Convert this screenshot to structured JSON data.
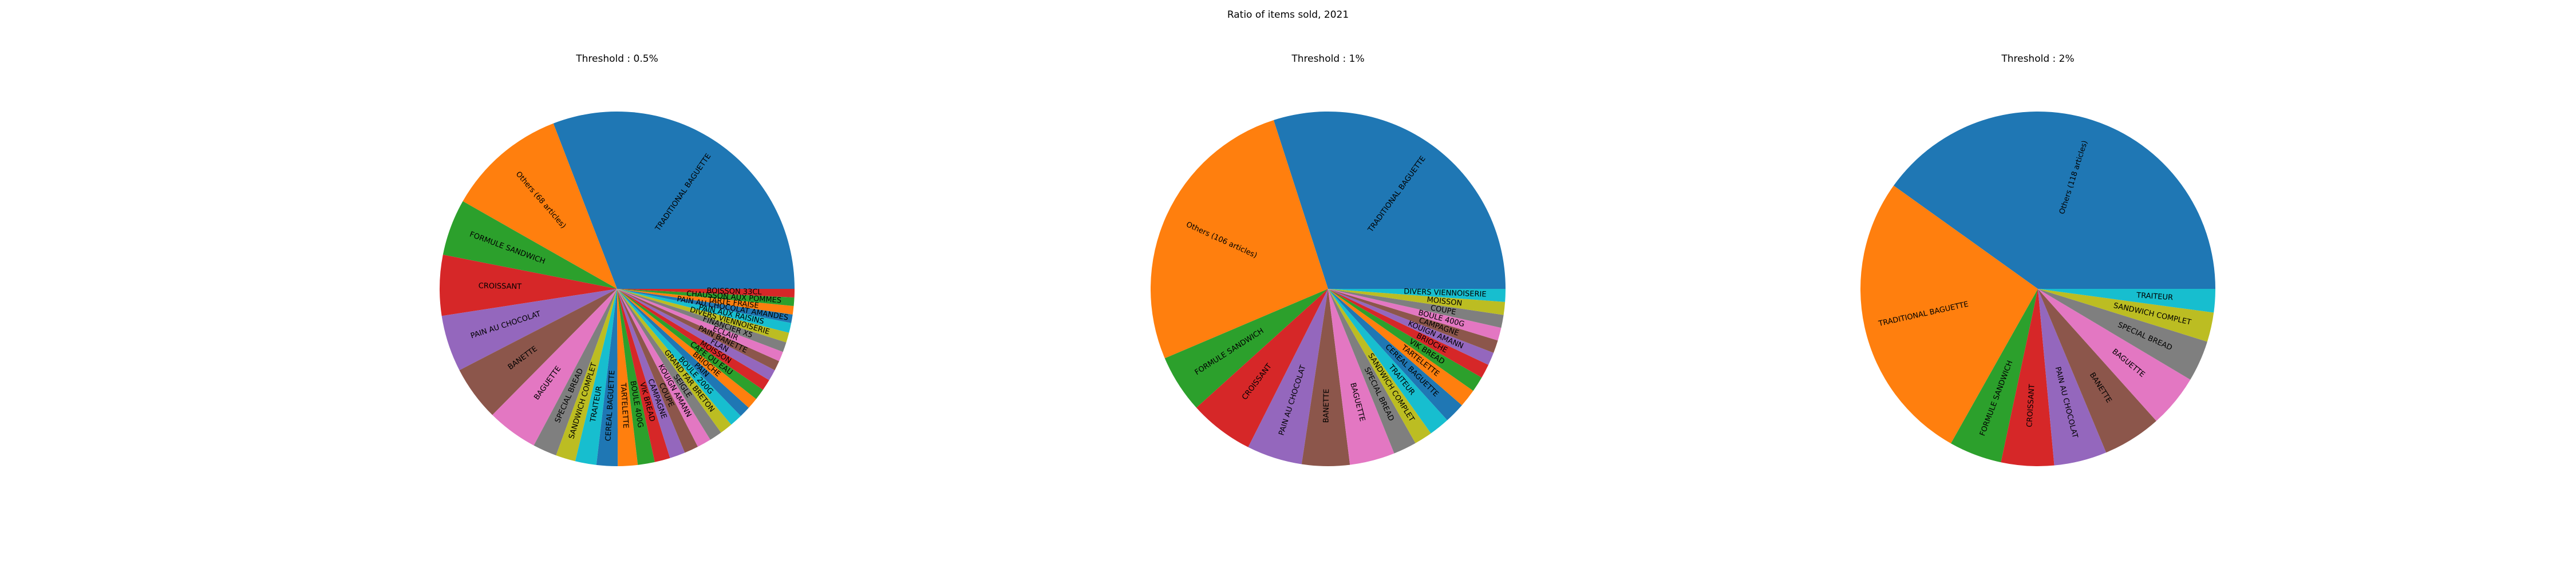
{
  "figure": {
    "title": "Ratio of items sold, 2021"
  },
  "palette": [
    "#1f77b4",
    "#ff7f0e",
    "#2ca02c",
    "#d62728",
    "#9467bd",
    "#8c564b",
    "#e377c2",
    "#7f7f7f",
    "#bcbd22",
    "#17becf"
  ],
  "chart_data": [
    {
      "type": "pie",
      "title": "Threshold : 0.5%",
      "start_angle_deg": 0,
      "direction": "counterclockwise",
      "labels": [
        "TRADITIONAL BAGUETTE",
        "Others (68 articles)",
        "FORMULE SANDWICH",
        "CROISSANT",
        "PAIN AU CHOCOLAT",
        "BANETTE",
        "BAGUETTE",
        "SPECIAL BREAD",
        "SANDWICH COMPLET",
        "TRAITEUR",
        "CEREAL BAGUETTE",
        "TARTELETTE",
        "BOULE 400G",
        "VIK BREAD",
        "CAMPAGNE",
        "COUPE",
        "KOUIGN AMANN",
        "SEIGLE",
        "GRAND FAR BRETON",
        "BOULE 200G",
        "PAIN",
        "BRIOCHE",
        "CAFE OU EAU",
        "MOISSON",
        "FLAN",
        "PAIN BANETTE",
        "ECLAIR",
        "FINANCIER X5",
        "DIVERS VIENNOISERIE",
        "PAIN AUX RAISINS",
        "PAIN AU CHOCOLAT AMANDES",
        "TARTE FRAISE",
        "CHAUSSON AUX POMMES",
        "BOISSON 33CL"
      ],
      "values": [
        24.0,
        8.5,
        4.0,
        4.3,
        4.0,
        3.9,
        3.6,
        1.7,
        1.4,
        1.5,
        1.5,
        1.4,
        1.2,
        1.1,
        1.1,
        1.0,
        1.0,
        0.9,
        0.9,
        0.9,
        0.8,
        0.8,
        0.8,
        0.8,
        0.8,
        0.7,
        0.7,
        0.7,
        0.7,
        0.7,
        0.6,
        0.6,
        0.6,
        0.6
      ]
    },
    {
      "type": "pie",
      "title": "Threshold : 1%",
      "start_angle_deg": 0,
      "direction": "counterclockwise",
      "labels": [
        "TRADITIONAL BAGUETTE",
        "Others (106 articles)",
        "FORMULE SANDWICH",
        "CROISSANT",
        "PAIN AU CHOCOLAT",
        "BANETTE",
        "BAGUETTE",
        "SPECIAL BREAD",
        "SANDWICH COMPLET",
        "TRAITEUR",
        "CEREAL BAGUETTE",
        "TARTELETTE",
        "VIK BREAD",
        "BRIOCHE",
        "KOUIGN AMANN",
        "CAMPAGNE",
        "BOULE 400G",
        "COUPE",
        "MOISSON",
        "DIVERS VIENNOISERIE"
      ],
      "values": [
        25.5,
        22.5,
        4.5,
        5.0,
        4.3,
        3.7,
        3.5,
        1.8,
        1.4,
        1.6,
        1.6,
        1.4,
        1.2,
        1.1,
        1.0,
        1.0,
        1.0,
        1.0,
        1.0,
        1.0
      ]
    },
    {
      "type": "pie",
      "title": "Threshold : 2%",
      "start_angle_deg": 0,
      "direction": "counterclockwise",
      "labels": [
        "Others (118 articles)",
        "TRADITIONAL BAGUETTE",
        "FORMULE SANDWICH",
        "CROISSANT",
        "PAIN AU CHOCOLAT",
        "BANETTE",
        "BAGUETTE",
        "SPECIAL BREAD",
        "SANDWICH COMPLET",
        "TRAITEUR"
      ],
      "values": [
        37.5,
        25.0,
        4.5,
        4.5,
        4.5,
        5.0,
        4.5,
        3.5,
        2.5,
        2.0
      ]
    }
  ]
}
